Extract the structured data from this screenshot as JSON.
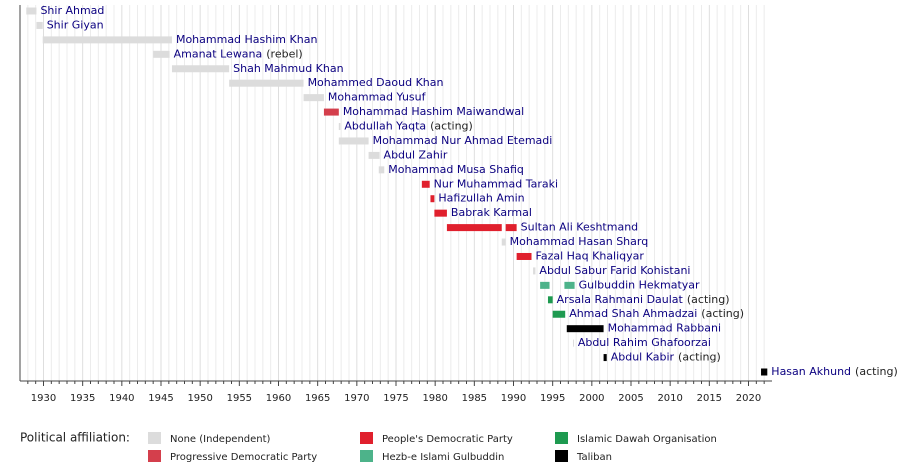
{
  "chart_data": {
    "type": "timeline",
    "xlim": [
      1927,
      2023
    ],
    "xticks": [
      1930,
      1935,
      1940,
      1945,
      1950,
      1955,
      1960,
      1965,
      1970,
      1975,
      1980,
      1985,
      1990,
      1995,
      2000,
      2005,
      2010,
      2015,
      2020
    ],
    "xminorticks": [
      1928,
      1929,
      1931,
      1932,
      1933,
      1934,
      1936,
      1937,
      1938,
      1939,
      1941,
      1942,
      1943,
      1944,
      1946,
      1947,
      1948,
      1949,
      1951,
      1952,
      1953,
      1954,
      1956,
      1957,
      1958,
      1959,
      1961,
      1962,
      1963,
      1964,
      1966,
      1967,
      1968,
      1969,
      1971,
      1972,
      1973,
      1974,
      1976,
      1977,
      1978,
      1979,
      1981,
      1982,
      1983,
      1984,
      1986,
      1987,
      1988,
      1989,
      1991,
      1992,
      1993,
      1994,
      1996,
      1997,
      1998,
      1999,
      2001,
      2002,
      2003,
      2004,
      2006,
      2007,
      2008,
      2009,
      2011,
      2012,
      2013,
      2014,
      2016,
      2017,
      2018,
      2019,
      2021,
      2022
    ],
    "grid": true,
    "legend_title": "Political affiliation:",
    "parties": [
      {
        "name": "None (Independent)",
        "color": "#dcdcdc"
      },
      {
        "name": "Progressive Democratic Party",
        "color": "#d43f4c"
      },
      {
        "name": "People's Democratic Party",
        "color": "#e0202d"
      },
      {
        "name": "Hezb-e Islami Gulbuddin",
        "color": "#4db38a"
      },
      {
        "name": "Islamic Dawah Organisation",
        "color": "#1e9a50"
      },
      {
        "name": "Taliban",
        "color": "#000000"
      }
    ],
    "rows": [
      {
        "name": "Shir Ahmad",
        "terms": [
          {
            "start": 1927.8,
            "end": 1929.1,
            "party": 0
          }
        ]
      },
      {
        "name": "Shir Giyan",
        "terms": [
          {
            "start": 1929.1,
            "end": 1929.9,
            "party": 0
          }
        ]
      },
      {
        "name": "Mohammad Hashim Khan",
        "terms": [
          {
            "start": 1929.9,
            "end": 1946.4,
            "party": 0
          }
        ]
      },
      {
        "name": "Amanat Lewana",
        "note": "(rebel)",
        "terms": [
          {
            "start": 1944.0,
            "end": 1946.1,
            "party": 0
          }
        ]
      },
      {
        "name": "Shah Mahmud Khan",
        "terms": [
          {
            "start": 1946.4,
            "end": 1953.7,
            "party": 0
          }
        ]
      },
      {
        "name": "Mohammed Daoud Khan",
        "terms": [
          {
            "start": 1953.7,
            "end": 1963.2,
            "party": 0
          }
        ]
      },
      {
        "name": "Mohammad Yusuf",
        "terms": [
          {
            "start": 1963.2,
            "end": 1965.8,
            "party": 0
          }
        ]
      },
      {
        "name": "Mohammad Hashim Maiwandwal",
        "terms": [
          {
            "start": 1965.8,
            "end": 1967.7,
            "party": 1
          }
        ]
      },
      {
        "name": "Abdullah Yaqta",
        "note": "(acting)",
        "terms": [
          {
            "start": 1967.7,
            "end": 1967.9,
            "party": 0
          }
        ]
      },
      {
        "name": "Mohammad Nur Ahmad Etemadi",
        "terms": [
          {
            "start": 1967.7,
            "end": 1971.5,
            "party": 0
          }
        ]
      },
      {
        "name": "Abdul Zahir",
        "terms": [
          {
            "start": 1971.5,
            "end": 1972.9,
            "party": 0
          }
        ]
      },
      {
        "name": "Mohammad Musa Shafiq",
        "terms": [
          {
            "start": 1972.8,
            "end": 1973.5,
            "party": 0
          }
        ]
      },
      {
        "name": "Nur Muhammad Taraki",
        "terms": [
          {
            "start": 1978.3,
            "end": 1979.3,
            "party": 2
          }
        ]
      },
      {
        "name": "Hafizullah Amin",
        "terms": [
          {
            "start": 1979.4,
            "end": 1979.9,
            "party": 2
          }
        ]
      },
      {
        "name": "Babrak Karmal",
        "terms": [
          {
            "start": 1979.9,
            "end": 1981.5,
            "party": 2
          }
        ]
      },
      {
        "name": "Sultan Ali Keshtmand",
        "terms": [
          {
            "start": 1981.5,
            "end": 1988.5,
            "party": 2
          },
          {
            "start": 1989.0,
            "end": 1990.4,
            "party": 2
          }
        ]
      },
      {
        "name": "Mohammad Hasan Sharq",
        "terms": [
          {
            "start": 1988.5,
            "end": 1989.0,
            "party": 0
          }
        ]
      },
      {
        "name": "Fazal Haq Khaliqyar",
        "terms": [
          {
            "start": 1990.4,
            "end": 1992.3,
            "party": 2
          }
        ]
      },
      {
        "name": "Abdul Sabur Farid Kohistani",
        "terms": [
          {
            "start": 1992.5,
            "end": 1992.8,
            "party": 0
          }
        ]
      },
      {
        "name": "Gulbuddin Hekmatyar",
        "terms": [
          {
            "start": 1993.4,
            "end": 1994.6,
            "party": 3
          },
          {
            "start": 1996.5,
            "end": 1997.8,
            "party": 3
          }
        ]
      },
      {
        "name": "Arsala Rahmani Daulat",
        "note": "(acting)",
        "terms": [
          {
            "start": 1994.4,
            "end": 1995.0,
            "party": 4
          }
        ]
      },
      {
        "name": "Ahmad Shah Ahmadzai",
        "note": "(acting)",
        "terms": [
          {
            "start": 1995.0,
            "end": 1996.6,
            "party": 4
          }
        ]
      },
      {
        "name": "Mohammad Rabbani",
        "terms": [
          {
            "start": 1996.8,
            "end": 2001.5,
            "party": 5
          }
        ]
      },
      {
        "name": "Abdul Rahim Ghafoorzai",
        "terms": [
          {
            "start": 1997.6,
            "end": 1997.7,
            "party": 0
          }
        ]
      },
      {
        "name": "Abdul Kabir",
        "note": "(acting)",
        "terms": [
          {
            "start": 2001.5,
            "end": 2001.9,
            "party": 5
          }
        ]
      },
      {
        "name": "Hasan Akhund",
        "note": "(acting)",
        "terms": [
          {
            "start": 2021.6,
            "end": 2022.4,
            "party": 5
          }
        ]
      }
    ]
  }
}
